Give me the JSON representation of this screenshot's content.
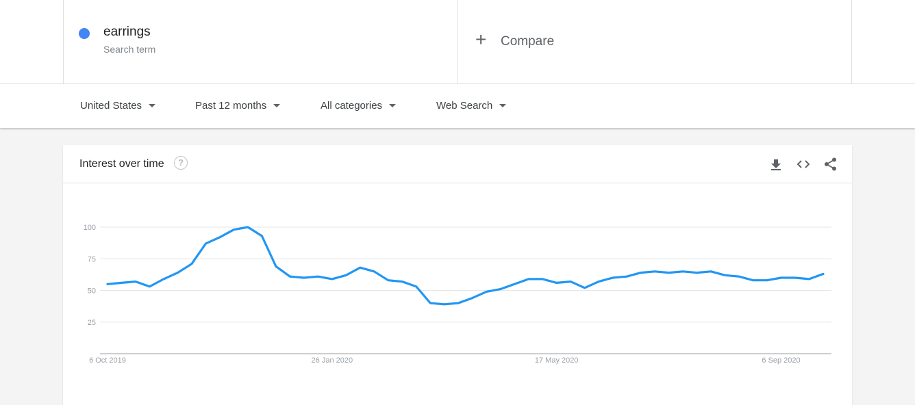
{
  "search_term": {
    "name": "earrings",
    "subtitle": "Search term",
    "color": "#4285f4"
  },
  "compare": {
    "label": "Compare",
    "icon": "plus-icon"
  },
  "filters": [
    {
      "label": "United States"
    },
    {
      "label": "Past 12 months"
    },
    {
      "label": "All categories"
    },
    {
      "label": "Web Search"
    }
  ],
  "card": {
    "title": "Interest over time",
    "help_icon": "question-circle-icon",
    "tools": [
      "download-icon",
      "embed-code-icon",
      "share-icon"
    ]
  },
  "chart_data": {
    "type": "line",
    "ylim": [
      0,
      100
    ],
    "yticks": [
      25,
      50,
      75,
      100
    ],
    "xtick_labels": [
      {
        "label": "6 Oct 2019",
        "index": 0
      },
      {
        "label": "26 Jan 2020",
        "index": 16
      },
      {
        "label": "17 May 2020",
        "index": 32
      },
      {
        "label": "6 Sep 2020",
        "index": 48
      }
    ],
    "grid": true,
    "line_color": "#2196f3",
    "series": [
      {
        "values": [
          55,
          56,
          57,
          53,
          59,
          64,
          71,
          87,
          92,
          98,
          100,
          93,
          69,
          61,
          60,
          61,
          59,
          62,
          68,
          65,
          58,
          57,
          53,
          40,
          39,
          40,
          44,
          49,
          51,
          55,
          59,
          59,
          56,
          57,
          52,
          57,
          60,
          61,
          64,
          65,
          64,
          65,
          64,
          65,
          62,
          61,
          58,
          58,
          60,
          60,
          59,
          63
        ]
      }
    ]
  }
}
